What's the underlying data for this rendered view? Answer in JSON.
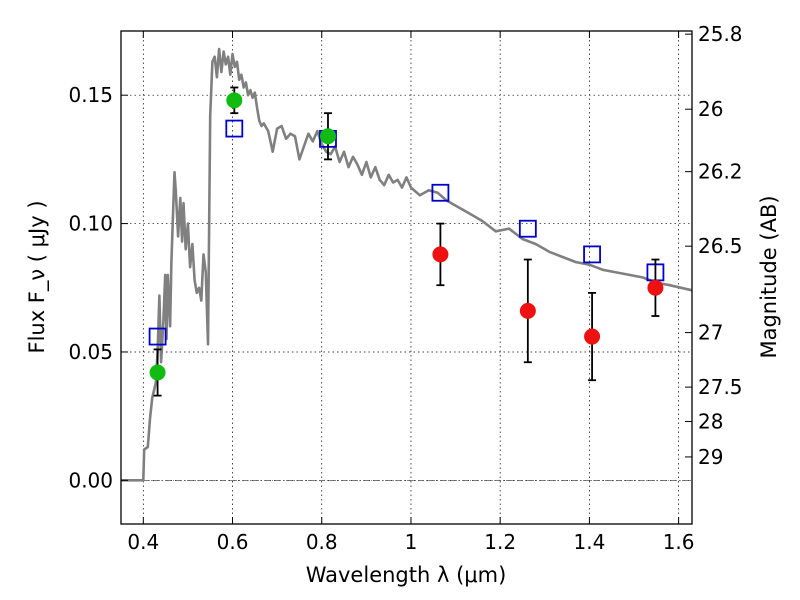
{
  "chart_data": {
    "type": "scatter",
    "xlabel": "Wavelength  λ (μm)",
    "ylabel": "Flux  F_ν  ( μJy )",
    "ylabel_right": "Magnitude (AB)",
    "xlim": [
      0.35,
      1.63
    ],
    "ylim": [
      -0.017,
      0.175
    ],
    "x_ticks": [
      0.4,
      0.6,
      0.8,
      1.0,
      1.2,
      1.4,
      1.6
    ],
    "x_tick_labels": [
      "0.4",
      "0.6",
      "0.8",
      "1",
      "1.2",
      "1.4",
      "1.6"
    ],
    "y_ticks": [
      0.0,
      0.05,
      0.1,
      0.15
    ],
    "y_tick_labels": [
      "0.00",
      "0.05",
      "0.10",
      "0.15"
    ],
    "right_ticks": [
      25.8,
      26,
      26.2,
      26.5,
      27,
      27.5,
      28,
      29
    ],
    "right_tick_labels": [
      "25.8",
      "26",
      "26.2",
      "26.5",
      "27",
      "27.5",
      "28",
      "29"
    ],
    "grid": true,
    "zero_line": true,
    "colors": {
      "template": "#808080",
      "green_points": "#11bb11",
      "red_points": "#ee1111",
      "model_squares": "#0000cc",
      "errorbars": "#000000"
    },
    "series": [
      {
        "marker": "line",
        "color": "#808080",
        "x": [
          0.35,
          0.4,
          0.402,
          0.41,
          0.415,
          0.42,
          0.428,
          0.432,
          0.436,
          0.44,
          0.445,
          0.449,
          0.452,
          0.455,
          0.46,
          0.463,
          0.466,
          0.47,
          0.473,
          0.478,
          0.483,
          0.487,
          0.49,
          0.495,
          0.5,
          0.505,
          0.51,
          0.515,
          0.52,
          0.525,
          0.53,
          0.535,
          0.54,
          0.545,
          0.55,
          0.555,
          0.56,
          0.565,
          0.57,
          0.575,
          0.58,
          0.585,
          0.59,
          0.595,
          0.6,
          0.605,
          0.61,
          0.615,
          0.62,
          0.625,
          0.63,
          0.635,
          0.64,
          0.645,
          0.65,
          0.655,
          0.66,
          0.665,
          0.67,
          0.68,
          0.69,
          0.7,
          0.71,
          0.72,
          0.73,
          0.74,
          0.75,
          0.76,
          0.77,
          0.78,
          0.79,
          0.8,
          0.81,
          0.82,
          0.83,
          0.84,
          0.85,
          0.86,
          0.87,
          0.88,
          0.89,
          0.9,
          0.91,
          0.92,
          0.93,
          0.94,
          0.95,
          0.96,
          0.97,
          0.98,
          0.99,
          1.0,
          1.02,
          1.04,
          1.06,
          1.08,
          1.1,
          1.13,
          1.16,
          1.19,
          1.22,
          1.25,
          1.28,
          1.31,
          1.34,
          1.37,
          1.4,
          1.43,
          1.46,
          1.49,
          1.52,
          1.55,
          1.58,
          1.63
        ],
        "y": [
          0.0,
          0.0,
          0.012,
          0.013,
          0.024,
          0.032,
          0.038,
          0.05,
          0.072,
          0.046,
          0.062,
          0.08,
          0.055,
          0.08,
          0.06,
          0.085,
          0.1,
          0.12,
          0.112,
          0.095,
          0.11,
          0.093,
          0.108,
          0.09,
          0.1,
          0.083,
          0.092,
          0.078,
          0.073,
          0.075,
          0.07,
          0.088,
          0.081,
          0.053,
          0.142,
          0.163,
          0.165,
          0.157,
          0.168,
          0.159,
          0.167,
          0.162,
          0.165,
          0.158,
          0.166,
          0.161,
          0.163,
          0.156,
          0.158,
          0.153,
          0.155,
          0.15,
          0.152,
          0.149,
          0.151,
          0.145,
          0.14,
          0.138,
          0.139,
          0.136,
          0.128,
          0.137,
          0.138,
          0.133,
          0.135,
          0.134,
          0.125,
          0.13,
          0.135,
          0.132,
          0.136,
          0.131,
          0.128,
          0.127,
          0.13,
          0.124,
          0.128,
          0.122,
          0.126,
          0.123,
          0.119,
          0.124,
          0.118,
          0.122,
          0.117,
          0.115,
          0.119,
          0.116,
          0.117,
          0.114,
          0.118,
          0.114,
          0.111,
          0.113,
          0.112,
          0.109,
          0.107,
          0.104,
          0.101,
          0.097,
          0.098,
          0.094,
          0.092,
          0.089,
          0.087,
          0.085,
          0.084,
          0.082,
          0.081,
          0.08,
          0.079,
          0.077,
          0.076,
          0.074
        ]
      },
      {
        "marker": "circle",
        "color": "#11bb11",
        "x": [
          0.432,
          0.604,
          0.814
        ],
        "y": [
          0.042,
          0.148,
          0.134
        ],
        "yerr": [
          0.009,
          0.005,
          0.009
        ]
      },
      {
        "marker": "circle",
        "color": "#ee1111",
        "x": [
          1.066,
          1.262,
          1.406,
          1.548
        ],
        "y": [
          0.088,
          0.066,
          0.056,
          0.075
        ],
        "yerr": [
          0.012,
          0.02,
          0.017,
          0.011
        ]
      },
      {
        "marker": "square",
        "color": "#0000cc",
        "x": [
          0.432,
          0.604,
          0.814,
          1.066,
          1.262,
          1.406,
          1.548
        ],
        "y": [
          0.056,
          0.137,
          0.133,
          0.112,
          0.098,
          0.088,
          0.081
        ]
      }
    ]
  }
}
